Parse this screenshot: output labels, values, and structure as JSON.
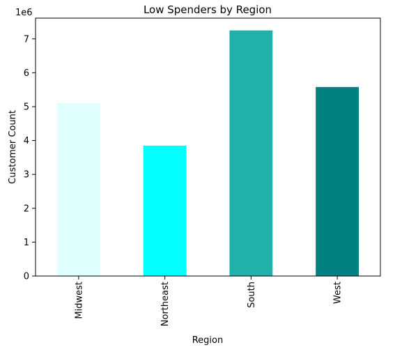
{
  "chart_data": {
    "type": "bar",
    "title": "Low Spenders by Region",
    "xlabel": "Region",
    "ylabel": "Customer Count",
    "y_offset_label": "1e6",
    "categories": [
      "Midwest",
      "Northeast",
      "South",
      "West"
    ],
    "values": [
      5100000,
      3850000,
      7250000,
      5580000
    ],
    "colors": [
      "#e0ffff",
      "#00ffff",
      "#20b2aa",
      "#008080"
    ],
    "ylim": [
      0,
      7612500
    ],
    "y_ticks": [
      0,
      1,
      2,
      3,
      4,
      5,
      6,
      7
    ],
    "grid": false,
    "legend": "none"
  }
}
